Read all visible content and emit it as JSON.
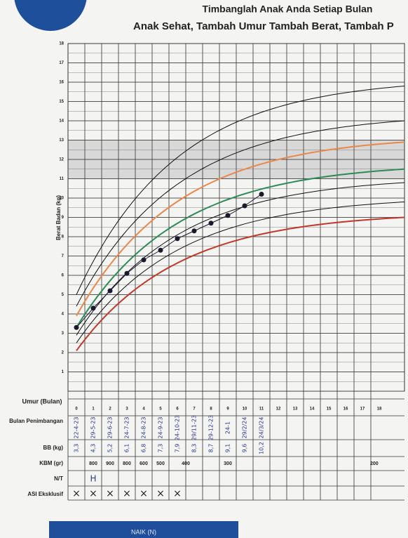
{
  "header": {
    "line1": "Timbanglah Anak Anda Setiap Bulan",
    "line2": "Anak Sehat, Tambah Umur Tambah Berat, Tambah P"
  },
  "chart_data": {
    "type": "scatter",
    "y_label": "Berat Badan (kg)",
    "x_label": "Umur (Bulan)",
    "x": [
      0,
      1,
      2,
      3,
      4,
      5,
      6,
      7,
      8,
      9,
      10,
      11
    ],
    "values": [
      3.3,
      4.3,
      5.2,
      6.1,
      6.8,
      7.3,
      7.9,
      8.3,
      8.7,
      9.1,
      9.6,
      10.2
    ],
    "value_labels": [
      "3,3",
      "4,3",
      "5,2",
      "6,1",
      "6,8",
      "7,3",
      "7,9",
      "8,3",
      "8,7",
      "9,1",
      "9,6",
      "10,2"
    ],
    "color": "#1a1a2e",
    "xlim": [
      -0.5,
      19.5
    ],
    "xticks": [
      0,
      1,
      2,
      3,
      4,
      5,
      6,
      7,
      8,
      9,
      10,
      11,
      12,
      13,
      14,
      15,
      16,
      17,
      18
    ],
    "ylim": [
      0,
      18
    ],
    "yticks": [
      1,
      2,
      3,
      4,
      5,
      6,
      7,
      8,
      9,
      10,
      11,
      12,
      13,
      14,
      15,
      16,
      17,
      18
    ],
    "grid": true
  },
  "table": {
    "row_labels": {
      "dates": "Bulan Penimbangan",
      "weight": "BB (kg)",
      "kbm": "KBM (gr)",
      "nt": "N/T",
      "asi": "ASI Eksklusif"
    },
    "dates": [
      "22-4-23",
      "29-5-23",
      "29-6-23",
      "24-7-23",
      "24-8-23",
      "24-9-23",
      "24-10-23",
      "29/11-23",
      "29-12-23",
      "24-1",
      "29/2/24",
      "24/3/24"
    ],
    "kbm": [
      "800",
      "900",
      "800",
      "600",
      "500",
      "400",
      "300",
      "200"
    ],
    "nt": [
      "H"
    ],
    "asi": [
      "×",
      "×",
      "×",
      "×",
      "×",
      "×",
      "×"
    ]
  },
  "footer": {
    "button": "NAIK (N)"
  }
}
